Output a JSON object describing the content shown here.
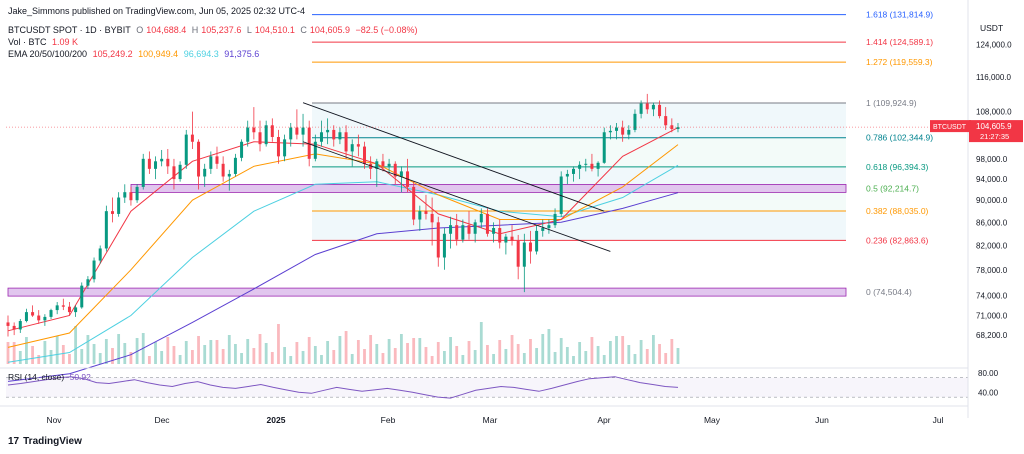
{
  "publisher": "Jake_Simmons published on TradingView.com, Jun 05, 2025 02:32 UTC-4",
  "symbol": "BTCUSDT SPOT · 1D · BYBIT",
  "ohlc": {
    "o_label": "O",
    "o": "104,688.4",
    "h_label": "H",
    "h": "105,237.6",
    "l_label": "L",
    "l": "104,510.1",
    "c_label": "C",
    "c": "104,605.9",
    "change": "−82.5 (−0.08%)"
  },
  "volume": {
    "label": "Vol · BTC",
    "value": "1.09 K"
  },
  "ema": {
    "label": "EMA 20/50/100/200",
    "values": [
      "105,249.2",
      "100,949.4",
      "96,694.3",
      "91,375.6"
    ]
  },
  "rsi": {
    "label": "RSI (14, close)",
    "value": "50.92"
  },
  "footer": {
    "brand": "TradingView"
  },
  "currency": "USDT",
  "current_price": {
    "symbol": "BTCUSDT",
    "price": "104,605.9",
    "countdown": "21:27:35"
  },
  "colors": {
    "up": "#089981",
    "down": "#f23645",
    "fib_band": "#e0f3f5",
    "zone": "#e1c6ee",
    "zone_border": "#9c27b0",
    "ema20": "#f23645",
    "ema50": "#ff9800",
    "ema100": "#4dd0e1",
    "ema200": "#5b3fd1",
    "rsi": "#7e57c2",
    "trendline": "#131722"
  },
  "chart_data": {
    "type": "candlestick",
    "title": "BTCUSDT SPOT · 1D · BYBIT",
    "y_axis_ticks": [
      "124,000.0",
      "116,000.0",
      "108,000.0",
      "98,000.0",
      "94,000.0",
      "90,000.0",
      "86,000.0",
      "82,000.0",
      "78,000.0",
      "74,000.0",
      "71,000.0",
      "68,200.0"
    ],
    "y_scale": "log",
    "ylim": [
      64000,
      132000
    ],
    "x_axis_ticks": [
      "Nov",
      "Dec",
      "2025",
      "Feb",
      "Mar",
      "Apr",
      "May",
      "Jun",
      "Jul"
    ],
    "fib_levels": [
      {
        "label": "1.618 (131,814.9)",
        "value": 131814.9,
        "color": "#2962ff"
      },
      {
        "label": "1.414 (124,589.1)",
        "value": 124589.1,
        "color": "#f23645"
      },
      {
        "label": "1.272 (119,559.3)",
        "value": 119559.3,
        "color": "#ff9800"
      },
      {
        "label": "1 (109,924.9)",
        "value": 109924.9,
        "color": "#787b86"
      },
      {
        "label": "0.786 (102,344.9)",
        "value": 102344.9,
        "color": "#00838f"
      },
      {
        "label": "0.618 (96,394.3)",
        "value": 96394.3,
        "color": "#089981"
      },
      {
        "label": "0.5 (92,214.7)",
        "value": 92214.7,
        "color": "#4caf50"
      },
      {
        "label": "0.382 (88,035.0)",
        "value": 88035.0,
        "color": "#ff9800"
      },
      {
        "label": "0.236 (82,863.6)",
        "value": 82863.6,
        "color": "#f23645"
      },
      {
        "label": "0 (74,504.4)",
        "value": 74504.4,
        "color": "#787b86"
      }
    ],
    "rsi_ticks": [
      "80.00",
      "40.00"
    ],
    "candles": [
      [
        0,
        70000,
        71000,
        68000,
        69500
      ],
      [
        2,
        69500,
        70000,
        68200,
        69000
      ],
      [
        4,
        69000,
        70500,
        68500,
        70200
      ],
      [
        6,
        70200,
        72000,
        70000,
        71500
      ],
      [
        8,
        71500,
        72500,
        70800,
        71000
      ],
      [
        10,
        71000,
        71800,
        69800,
        70300
      ],
      [
        12,
        70300,
        71200,
        69500,
        70800
      ],
      [
        14,
        70800,
        72000,
        70500,
        71800
      ],
      [
        16,
        71800,
        73000,
        71200,
        72500
      ],
      [
        18,
        72500,
        73500,
        71800,
        72300
      ],
      [
        20,
        72300,
        73000,
        71000,
        71500
      ],
      [
        22,
        71500,
        72500,
        70800,
        72200
      ],
      [
        24,
        72200,
        76000,
        72000,
        75500
      ],
      [
        26,
        75500,
        77000,
        75000,
        76500
      ],
      [
        28,
        76500,
        80000,
        76000,
        79500
      ],
      [
        30,
        79500,
        82000,
        79000,
        81500
      ],
      [
        32,
        81500,
        89000,
        81000,
        88000
      ],
      [
        34,
        88000,
        90500,
        86000,
        87500
      ],
      [
        36,
        87500,
        91500,
        87000,
        90500
      ],
      [
        38,
        90500,
        93000,
        89500,
        91500
      ],
      [
        40,
        91500,
        92500,
        89000,
        90000
      ],
      [
        42,
        90000,
        93000,
        89500,
        92500
      ],
      [
        44,
        92500,
        99000,
        92000,
        98000
      ],
      [
        46,
        98000,
        99500,
        95000,
        96000
      ],
      [
        48,
        96000,
        98500,
        94000,
        97500
      ],
      [
        50,
        97500,
        99800,
        96500,
        98000
      ],
      [
        52,
        98000,
        100000,
        95000,
        96500
      ],
      [
        54,
        96500,
        98000,
        92000,
        94000
      ],
      [
        56,
        94000,
        97500,
        93500,
        96800
      ],
      [
        58,
        96800,
        104000,
        96000,
        103000
      ],
      [
        60,
        103000,
        108000,
        100000,
        101500
      ],
      [
        62,
        101500,
        102000,
        92000,
        94500
      ],
      [
        64,
        94500,
        97000,
        92500,
        96000
      ],
      [
        66,
        96000,
        99500,
        95000,
        98500
      ],
      [
        68,
        98500,
        100500,
        96000,
        97000
      ],
      [
        70,
        97000,
        98500,
        93500,
        94500
      ],
      [
        72,
        94500,
        95800,
        91800,
        95000
      ],
      [
        74,
        95000,
        99000,
        94500,
        98200
      ],
      [
        76,
        98200,
        102000,
        97500,
        101500
      ],
      [
        78,
        101500,
        106000,
        100500,
        104500
      ],
      [
        80,
        104500,
        109000,
        102000,
        103500
      ],
      [
        82,
        103500,
        106000,
        99500,
        101000
      ],
      [
        84,
        101000,
        106000,
        100500,
        105000
      ],
      [
        86,
        105000,
        106500,
        101500,
        102500
      ],
      [
        88,
        102500,
        104000,
        97000,
        98500
      ],
      [
        90,
        98500,
        103000,
        97500,
        102000
      ],
      [
        92,
        102000,
        105500,
        100500,
        104500
      ],
      [
        94,
        104500,
        108500,
        102000,
        103000
      ],
      [
        96,
        103000,
        107500,
        100500,
        104500
      ],
      [
        98,
        104500,
        106000,
        96500,
        98000
      ],
      [
        100,
        98000,
        103000,
        97500,
        101500
      ],
      [
        102,
        101500,
        106000,
        100500,
        103500
      ],
      [
        104,
        103500,
        106500,
        101000,
        104000
      ],
      [
        106,
        104000,
        105000,
        100500,
        102000
      ],
      [
        108,
        102000,
        104500,
        101000,
        103500
      ],
      [
        110,
        103500,
        105000,
        98000,
        99500
      ],
      [
        112,
        99500,
        102000,
        96500,
        101000
      ],
      [
        114,
        101000,
        103000,
        98500,
        100500
      ],
      [
        116,
        100500,
        101500,
        96000,
        97000
      ],
      [
        118,
        97000,
        98500,
        94000,
        96000
      ],
      [
        120,
        96000,
        98000,
        92500,
        97500
      ],
      [
        122,
        97500,
        99000,
        95500,
        96500
      ],
      [
        124,
        96500,
        98000,
        95000,
        97000
      ],
      [
        126,
        97000,
        97500,
        93000,
        94500
      ],
      [
        128,
        94500,
        96500,
        91500,
        95500
      ],
      [
        130,
        95500,
        98000,
        91500,
        92500
      ],
      [
        132,
        92500,
        93500,
        85500,
        86500
      ],
      [
        134,
        86500,
        89000,
        84500,
        88000
      ],
      [
        136,
        88000,
        91000,
        86500,
        87500
      ],
      [
        138,
        87500,
        90500,
        82000,
        86000
      ],
      [
        140,
        86000,
        87000,
        78500,
        80000
      ],
      [
        142,
        80000,
        85000,
        78000,
        84000
      ],
      [
        144,
        84000,
        87000,
        81500,
        85500
      ],
      [
        146,
        85500,
        87500,
        82000,
        83000
      ],
      [
        148,
        83000,
        86500,
        82500,
        85500
      ],
      [
        150,
        85500,
        88000,
        83000,
        84000
      ],
      [
        152,
        84000,
        86500,
        82500,
        86000
      ],
      [
        154,
        86000,
        88500,
        85000,
        87500
      ],
      [
        156,
        87500,
        88500,
        83500,
        84000
      ],
      [
        158,
        84000,
        86000,
        82500,
        85000
      ],
      [
        160,
        85000,
        86500,
        81500,
        82500
      ],
      [
        162,
        82500,
        84000,
        80500,
        83500
      ],
      [
        164,
        83500,
        85500,
        82000,
        82800
      ],
      [
        166,
        82800,
        83800,
        76500,
        78500
      ],
      [
        168,
        78500,
        84000,
        74500,
        82500
      ],
      [
        170,
        82500,
        84500,
        79000,
        81000
      ],
      [
        172,
        81000,
        85500,
        80500,
        84500
      ],
      [
        174,
        84500,
        86500,
        83500,
        85000
      ],
      [
        176,
        85000,
        86500,
        84000,
        85500
      ],
      [
        178,
        85500,
        88500,
        85000,
        87500
      ],
      [
        180,
        87500,
        95500,
        87000,
        94500
      ],
      [
        182,
        94500,
        95800,
        93000,
        95000
      ],
      [
        184,
        95000,
        96500,
        93500,
        96000
      ],
      [
        186,
        96000,
        97500,
        94000,
        96800
      ],
      [
        188,
        96800,
        98000,
        95500,
        97000
      ],
      [
        190,
        97000,
        99000,
        95500,
        96000
      ],
      [
        192,
        96000,
        97500,
        94500,
        97200
      ],
      [
        194,
        97200,
        104500,
        97000,
        103500
      ],
      [
        196,
        103500,
        105000,
        102000,
        103800
      ],
      [
        198,
        103800,
        105500,
        102000,
        104500
      ],
      [
        200,
        104500,
        106000,
        101500,
        103000
      ],
      [
        202,
        103000,
        105000,
        102000,
        104000
      ],
      [
        204,
        104000,
        108500,
        103500,
        107500
      ],
      [
        206,
        107500,
        110500,
        106500,
        109800
      ],
      [
        208,
        109800,
        112000,
        107500,
        108500
      ],
      [
        210,
        108500,
        110000,
        107000,
        109500
      ],
      [
        212,
        109500,
        110500,
        106500,
        107000
      ],
      [
        214,
        107000,
        109000,
        104000,
        105000
      ],
      [
        216,
        105000,
        106500,
        103500,
        104200
      ],
      [
        218,
        104200,
        105500,
        103500,
        104600
      ]
    ],
    "ema20": [
      [
        0,
        68800
      ],
      [
        20,
        71000
      ],
      [
        40,
        88000
      ],
      [
        60,
        97500
      ],
      [
        80,
        101500
      ],
      [
        100,
        101000
      ],
      [
        120,
        97000
      ],
      [
        140,
        87500
      ],
      [
        160,
        84000
      ],
      [
        180,
        86500
      ],
      [
        200,
        98500
      ],
      [
        218,
        104500
      ]
    ],
    "ema50": [
      [
        0,
        66500
      ],
      [
        20,
        68500
      ],
      [
        40,
        78000
      ],
      [
        60,
        90000
      ],
      [
        80,
        96500
      ],
      [
        100,
        99000
      ],
      [
        120,
        97000
      ],
      [
        140,
        91000
      ],
      [
        160,
        86500
      ],
      [
        180,
        86500
      ],
      [
        200,
        92500
      ],
      [
        218,
        100900
      ]
    ],
    "ema100": [
      [
        0,
        64500
      ],
      [
        20,
        65800
      ],
      [
        40,
        71000
      ],
      [
        60,
        80000
      ],
      [
        80,
        88000
      ],
      [
        100,
        93000
      ],
      [
        120,
        93500
      ],
      [
        140,
        91000
      ],
      [
        160,
        88000
      ],
      [
        180,
        87000
      ],
      [
        200,
        90500
      ],
      [
        218,
        96700
      ]
    ],
    "ema200": [
      [
        0,
        62000
      ],
      [
        20,
        63000
      ],
      [
        40,
        65500
      ],
      [
        60,
        70000
      ],
      [
        80,
        75000
      ],
      [
        100,
        80500
      ],
      [
        120,
        84000
      ],
      [
        140,
        85000
      ],
      [
        160,
        85500
      ],
      [
        180,
        86000
      ],
      [
        200,
        88500
      ],
      [
        218,
        91400
      ]
    ]
  }
}
